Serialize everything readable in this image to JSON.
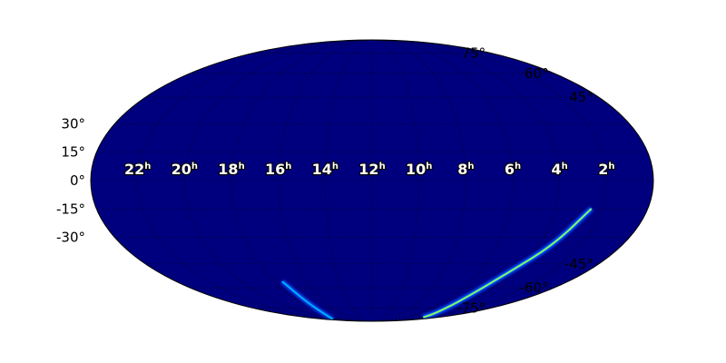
{
  "chart_data": {
    "type": "heatmap",
    "projection": "mollweide",
    "background_color": "#00007f",
    "colormap": "jet",
    "grid": true,
    "ra_tick_labels": [
      "22h",
      "20h",
      "18h",
      "16h",
      "14h",
      "12h",
      "10h",
      "8h",
      "6h",
      "4h",
      "2h"
    ],
    "ra_tick_values_hours": [
      22,
      20,
      18,
      16,
      14,
      12,
      10,
      8,
      6,
      4,
      2
    ],
    "dec_tick_labels": [
      "75°",
      "60°",
      "45°",
      "30°",
      "15°",
      "0°",
      "-15°",
      "-30°",
      "-45°",
      "-60°",
      "-75°"
    ],
    "dec_tick_values": [
      75,
      60,
      45,
      30,
      15,
      0,
      -15,
      -30,
      -45,
      -60,
      -75
    ],
    "probability_arcs": [
      {
        "points_ra_hours_dec_deg": [
          [
            2.45,
            -14.6
          ],
          [
            3.3,
            -34.2
          ],
          [
            4.3,
            -50
          ],
          [
            4.75,
            -68.2
          ],
          [
            3.9,
            -79.4
          ],
          [
            2.65,
            -84
          ]
        ],
        "peak": "high"
      },
      {
        "points_ra_hours_dec_deg": [
          [
            17.5,
            -55.8
          ],
          [
            17.6,
            -71.7
          ],
          [
            22.2,
            -86.5
          ]
        ],
        "peak": "medium"
      }
    ]
  }
}
